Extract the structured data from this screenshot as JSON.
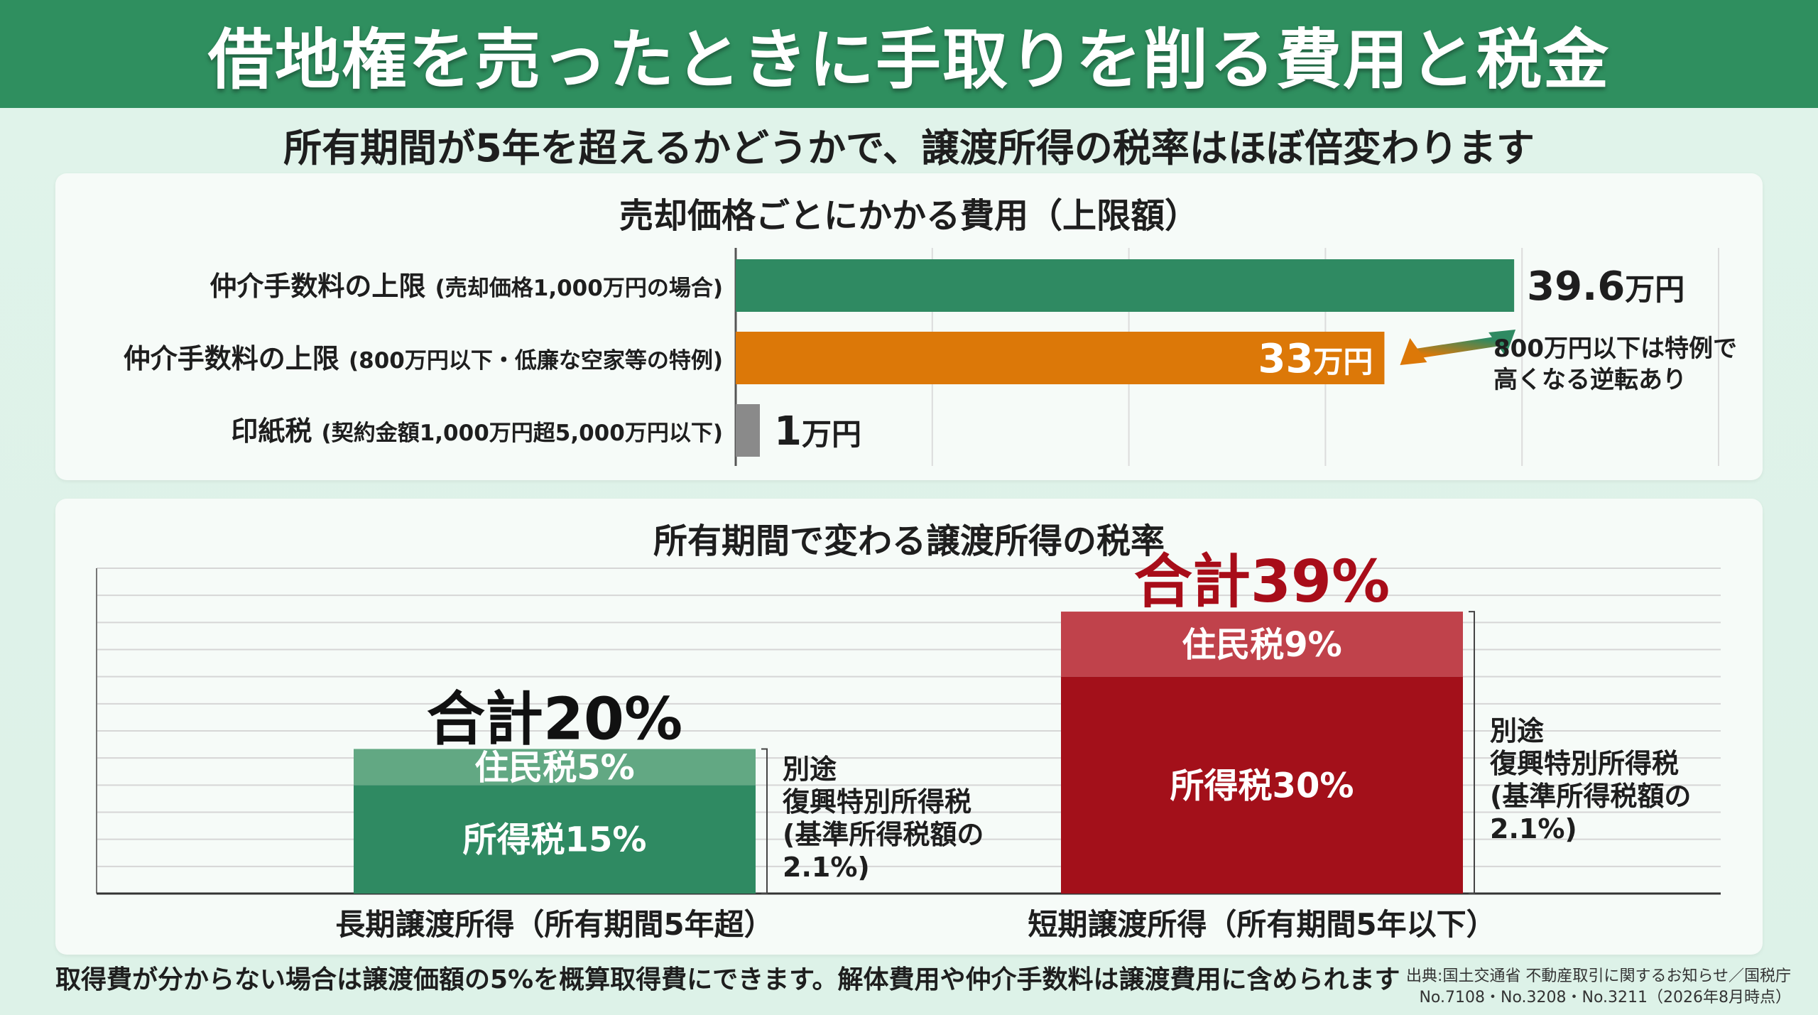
{
  "title": "借地権を売ったときに手取りを削る費用と税金",
  "subtitle": "所有期間が5年を超えるかどうかで、譲渡所得の税率はほぼ倍変わります",
  "colors": {
    "header": "#2f8f5f",
    "green": "#2f8a62",
    "green_light": "#62a883",
    "orange": "#dc7808",
    "gray": "#8a8a8a",
    "red_dark": "#a3101a",
    "red_light": "#c0424b",
    "red_text": "#a80d19"
  },
  "chart_data": [
    {
      "type": "bar",
      "orientation": "horizontal",
      "title": "売却価格ごとにかかる費用（上限額）",
      "unit": "万円",
      "xlim": [
        0,
        50
      ],
      "grid": true,
      "categories": [
        {
          "main": "仲介手数料の上限",
          "detail": "(売却価格1,000万円の場合)"
        },
        {
          "main": "仲介手数料の上限",
          "detail": "(800万円以下・低廉な空家等の特例)"
        },
        {
          "main": "印紙税",
          "detail": "(契約金額1,000万円超5,000万円以下)"
        }
      ],
      "values": [
        39.6,
        33,
        1
      ],
      "value_labels": [
        {
          "num": "39.6",
          "unit": "万円"
        },
        {
          "num": "33",
          "unit": "万円"
        },
        {
          "num": "1",
          "unit": "万円"
        }
      ],
      "annotation": {
        "lines": [
          "800万円以下は特例で",
          "高くなる逆転あり"
        ]
      }
    },
    {
      "type": "bar",
      "stacked": true,
      "title": "所有期間で変わる譲渡所得の税率",
      "unit": "%",
      "ylim": [
        0,
        45
      ],
      "grid": true,
      "categories": [
        "長期譲渡所得（所有期間5年超）",
        "短期譲渡所得（所有期間5年以下）"
      ],
      "series": [
        {
          "name": "所得税",
          "values": [
            15,
            30
          ],
          "labels": [
            "所得税15%",
            "所得税30%"
          ]
        },
        {
          "name": "住民税",
          "values": [
            5,
            9
          ],
          "labels": [
            "住民税5%",
            "住民税9%"
          ]
        }
      ],
      "totals": [
        20,
        39
      ],
      "total_labels": [
        "合計20%",
        "合計39%"
      ],
      "side_notes": [
        [
          "別途",
          "復興特別所得税",
          "(基準所得税額の",
          "2.1%)"
        ],
        [
          "別途",
          "復興特別所得税",
          "(基準所得税額の",
          "2.1%)"
        ]
      ]
    }
  ],
  "footnote": "取得費が分からない場合は譲渡価額の5%を概算取得費にできます。解体費用や仲介手数料は譲渡費用に含められます",
  "source": {
    "line1": "出典:国土交通省 不動産取引に関するお知らせ／国税庁",
    "line2": "No.7108・No.3208・No.3211（2026年8月時点）"
  }
}
